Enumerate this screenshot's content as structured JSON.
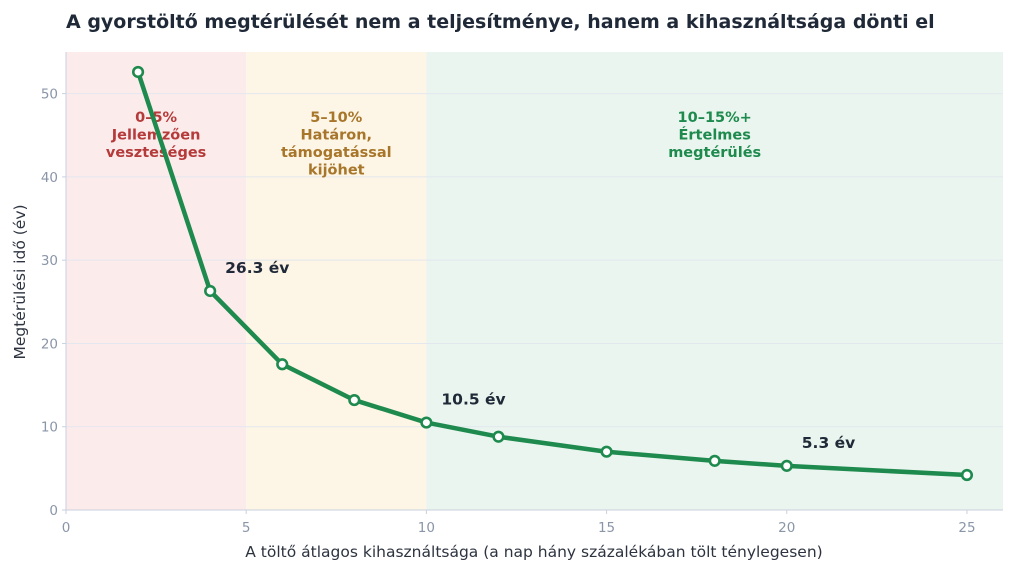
{
  "chart_data": {
    "type": "line",
    "title": "A gyorstöltő megtérülését nem a teljesítménye, hanem a kihasználtsága dönti el",
    "xlabel": "A töltő átlagos kihasználtsága (a nap hány százalékában tölt ténylegesen)",
    "ylabel": "Megtérülési idő (év)",
    "xlim": [
      0,
      26
    ],
    "ylim": [
      0,
      55
    ],
    "xticks": [
      0,
      5,
      10,
      15,
      20,
      25
    ],
    "yticks": [
      0,
      10,
      20,
      30,
      40,
      50
    ],
    "grid": true,
    "series": [
      {
        "color": "#1e8a4e",
        "x": [
          2,
          4,
          6,
          8,
          10,
          12,
          15,
          18,
          20,
          25
        ],
        "y": [
          52.6,
          26.3,
          17.5,
          13.2,
          10.5,
          8.8,
          7.0,
          5.9,
          5.3,
          4.2
        ]
      }
    ],
    "bands": [
      {
        "from": 0,
        "to": 5,
        "color": "#fcebeb",
        "text_color": "#b53a3a",
        "lines": [
          "0–5%",
          "Jellemzően",
          "veszteséges"
        ]
      },
      {
        "from": 5,
        "to": 10,
        "color": "#fdf5e5",
        "text_color": "#a8762a",
        "lines": [
          "5–10%",
          "Határon,",
          "támogatással",
          "kijöhet"
        ]
      },
      {
        "from": 10,
        "to": 26,
        "color": "#e9f5ee",
        "text_color": "#1e8a4e",
        "lines": [
          "10–15%+",
          "Értelmes",
          "megtérülés"
        ]
      }
    ],
    "annotations": [
      {
        "x": 4,
        "y": 26.3,
        "text": "26.3 év"
      },
      {
        "x": 10,
        "y": 10.5,
        "text": "10.5 év"
      },
      {
        "x": 20,
        "y": 5.3,
        "text": "5.3 év"
      }
    ]
  }
}
